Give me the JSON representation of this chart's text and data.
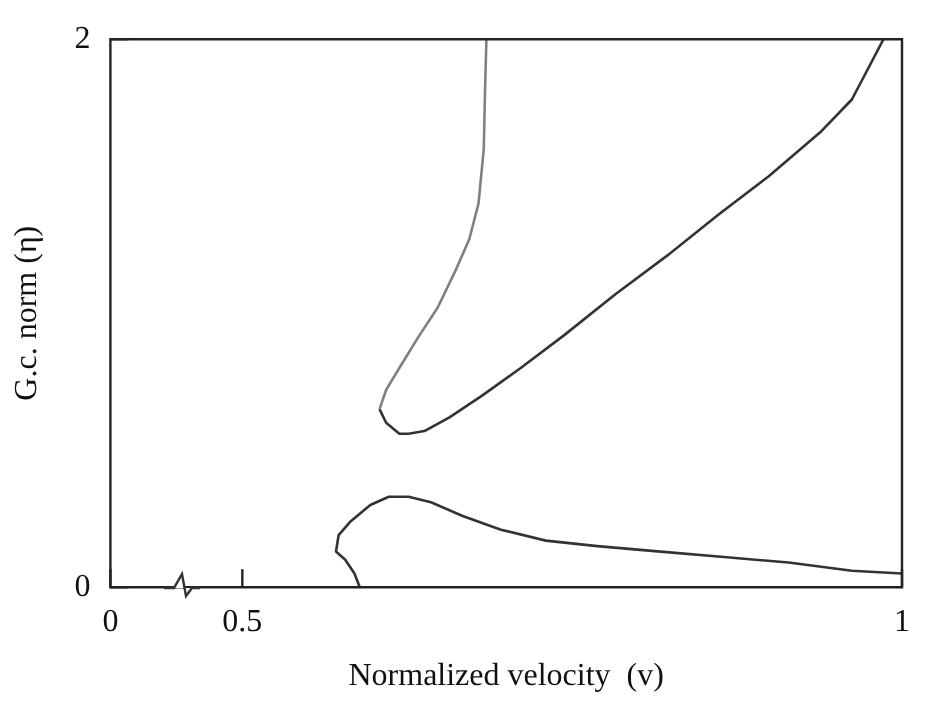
{
  "chart_data": {
    "type": "line",
    "xlabel": "Normalized velocity  (v)",
    "ylabel": "G.c. norm (η)",
    "xlim": [
      0.4,
      1
    ],
    "xticks": [
      {
        "value": 0.4,
        "label": "0"
      },
      0.5,
      1
    ],
    "ylim": [
      0,
      2
    ],
    "yticks": [
      0,
      2
    ],
    "grid": false,
    "legend": false,
    "series": [
      {
        "color": "#808080",
        "x": [
          0.685,
          0.684,
          0.683,
          0.679,
          0.672,
          0.662,
          0.648,
          0.633,
          0.619,
          0.609,
          0.604
        ],
        "values": [
          2.0,
          1.82,
          1.6,
          1.4,
          1.27,
          1.16,
          1.02,
          0.91,
          0.8,
          0.72,
          0.65
        ]
      },
      {
        "color": "#333333",
        "x": [
          0.604,
          0.609,
          0.619,
          0.626,
          0.638,
          0.657,
          0.682,
          0.711,
          0.744,
          0.783,
          0.822,
          0.861,
          0.899,
          0.938,
          0.962,
          0.986
        ],
        "values": [
          0.65,
          0.6,
          0.56,
          0.56,
          0.57,
          0.62,
          0.7,
          0.8,
          0.92,
          1.07,
          1.21,
          1.36,
          1.5,
          1.66,
          1.78,
          2.0
        ]
      },
      {
        "color": "#333333",
        "x": [
          0.589,
          0.585,
          0.578,
          0.571,
          0.573,
          0.582,
          0.597,
          0.611,
          0.626,
          0.643,
          0.667,
          0.696,
          0.73,
          0.769,
          0.817,
          0.865,
          0.914,
          0.962,
          1.0
        ],
        "values": [
          0,
          0.05,
          0.1,
          0.13,
          0.19,
          0.24,
          0.3,
          0.33,
          0.33,
          0.31,
          0.26,
          0.21,
          0.17,
          0.15,
          0.13,
          0.11,
          0.09,
          0.06,
          0.05
        ]
      }
    ]
  }
}
